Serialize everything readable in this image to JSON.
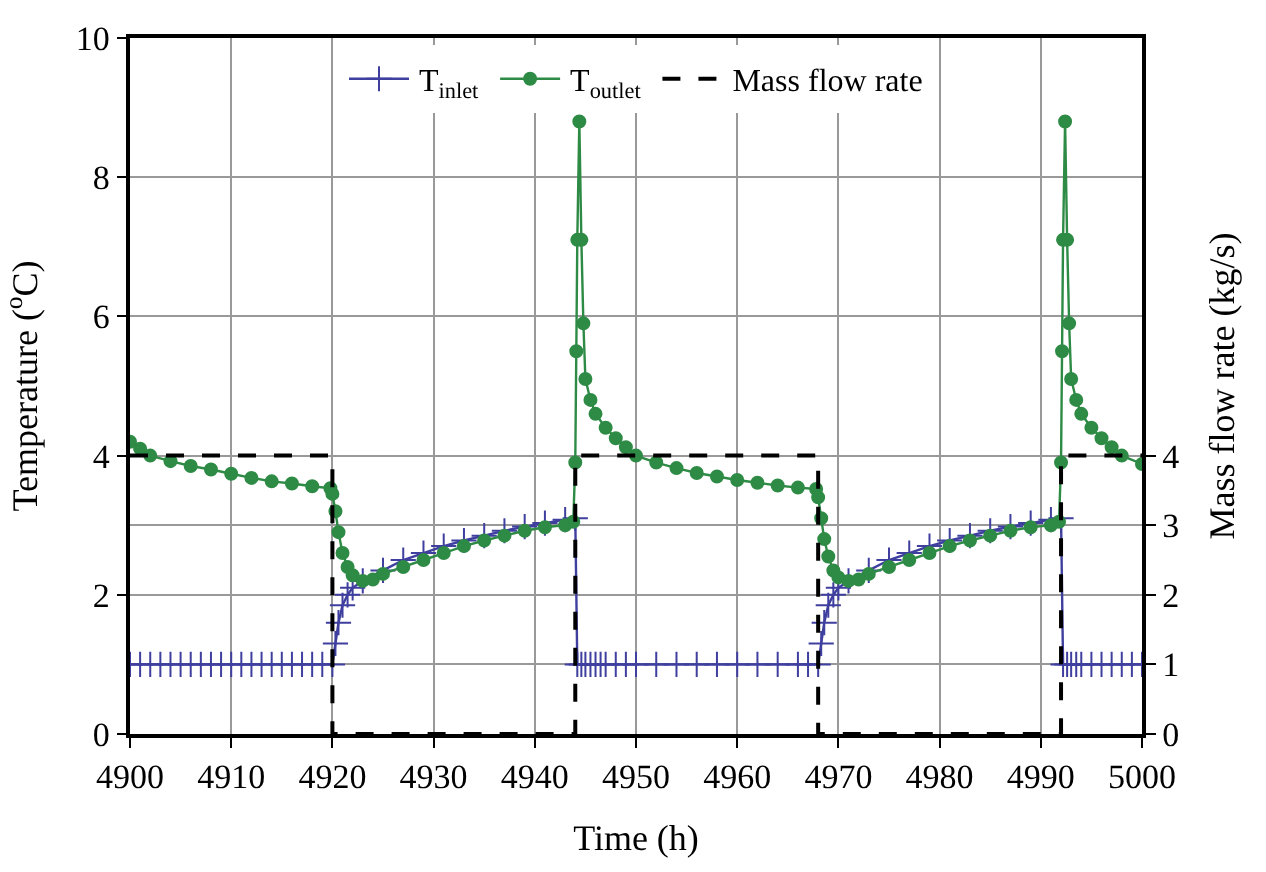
{
  "chart_data": {
    "type": "line",
    "xlabel": "Time (h)",
    "ylabel": "Temperature ($^{o}$C)",
    "y2label": "Mass flow rate (kg/s)",
    "xlim": [
      4900,
      5000
    ],
    "xticks": [
      4900,
      4910,
      4920,
      4930,
      4940,
      4950,
      4960,
      4970,
      4980,
      4990,
      5000
    ],
    "ylim": [
      0,
      10
    ],
    "yticks": [
      0,
      2,
      4,
      6,
      8,
      10
    ],
    "y2lim": [
      0,
      10
    ],
    "y2ticks": [
      0,
      1,
      2,
      3,
      4
    ],
    "grid": true,
    "legend": "top",
    "series": [
      {
        "name": "T$_{inlet}$",
        "color": "#3f3f9f",
        "marker": "cross",
        "x": [
          4900,
          4901,
          4902,
          4903,
          4904,
          4905,
          4906,
          4907,
          4908,
          4909,
          4910,
          4911,
          4912,
          4913,
          4914,
          4915,
          4916,
          4917,
          4918,
          4919,
          4920,
          4920.3,
          4920.6,
          4921,
          4921.5,
          4922,
          4923,
          4925,
          4927,
          4929,
          4931,
          4933,
          4935,
          4937,
          4939,
          4941,
          4943,
          4944,
          4944.2,
          4944.6,
          4945,
          4945.5,
          4946,
          4946.5,
          4947,
          4948,
          4949,
          4950,
          4952,
          4954,
          4956,
          4958,
          4960,
          4962,
          4964,
          4966,
          4967,
          4968,
          4968.3,
          4968.6,
          4969,
          4969.5,
          4970,
          4971,
          4973,
          4975,
          4977,
          4979,
          4981,
          4983,
          4985,
          4987,
          4989,
          4991,
          4992,
          4992.2,
          4992.6,
          4993,
          4993.5,
          4994,
          4995,
          4996,
          4997,
          4998,
          4999,
          5000
        ],
        "values": [
          1,
          1,
          1,
          1,
          1,
          1,
          1,
          1,
          1,
          1,
          1,
          1,
          1,
          1,
          1,
          1,
          1,
          1,
          1,
          1,
          1,
          1.3,
          1.6,
          1.85,
          2.0,
          2.1,
          2.2,
          2.35,
          2.5,
          2.6,
          2.7,
          2.78,
          2.85,
          2.92,
          2.98,
          3.03,
          3.08,
          3.1,
          1,
          1,
          1,
          1,
          1,
          1,
          1,
          1,
          1,
          1,
          1,
          1,
          1,
          1,
          1,
          1,
          1,
          1,
          1,
          1,
          1.3,
          1.6,
          1.85,
          2.0,
          2.1,
          2.2,
          2.35,
          2.5,
          2.6,
          2.7,
          2.78,
          2.85,
          2.92,
          2.98,
          3.03,
          3.08,
          3.1,
          1,
          1,
          1,
          1,
          1,
          1,
          1,
          1,
          1,
          1,
          1
        ]
      },
      {
        "name": "T$_{outlet}$",
        "color": "#2e8b45",
        "marker": "circle",
        "x": [
          4900,
          4901,
          4902,
          4904,
          4906,
          4908,
          4910,
          4912,
          4914,
          4916,
          4918,
          4919.8,
          4920,
          4920.3,
          4920.6,
          4921,
          4921.5,
          4922,
          4923,
          4924,
          4925,
          4927,
          4929,
          4931,
          4933,
          4935,
          4937,
          4939,
          4941,
          4943,
          4943.8,
          4944,
          4944.1,
          4944.2,
          4944.4,
          4944.6,
          4944.8,
          4945,
          4945.5,
          4946,
          4947,
          4948,
          4949,
          4950,
          4952,
          4954,
          4956,
          4958,
          4960,
          4962,
          4964,
          4966,
          4967.8,
          4968,
          4968.3,
          4968.6,
          4969,
          4969.5,
          4970,
          4971,
          4972,
          4973,
          4975,
          4977,
          4979,
          4981,
          4983,
          4985,
          4987,
          4989,
          4991,
          4991.8,
          4992,
          4992.1,
          4992.2,
          4992.4,
          4992.6,
          4992.8,
          4993,
          4993.5,
          4994,
          4995,
          4996,
          4997,
          4998,
          5000
        ],
        "values": [
          4.2,
          4.1,
          4.0,
          3.92,
          3.85,
          3.8,
          3.74,
          3.68,
          3.63,
          3.6,
          3.56,
          3.53,
          3.45,
          3.2,
          2.9,
          2.6,
          2.4,
          2.28,
          2.2,
          2.22,
          2.3,
          2.4,
          2.5,
          2.6,
          2.7,
          2.78,
          2.85,
          2.92,
          2.97,
          3.0,
          3.05,
          3.9,
          5.5,
          7.1,
          8.8,
          7.1,
          5.9,
          5.1,
          4.8,
          4.6,
          4.4,
          4.25,
          4.12,
          4.0,
          3.9,
          3.82,
          3.75,
          3.7,
          3.65,
          3.61,
          3.57,
          3.54,
          3.52,
          3.4,
          3.1,
          2.8,
          2.55,
          2.35,
          2.25,
          2.2,
          2.22,
          2.3,
          2.4,
          2.5,
          2.6,
          2.7,
          2.78,
          2.85,
          2.92,
          2.97,
          3.0,
          3.05,
          3.9,
          5.5,
          7.1,
          8.8,
          7.1,
          5.9,
          5.1,
          4.8,
          4.6,
          4.4,
          4.25,
          4.12,
          4.0,
          3.88
        ]
      },
      {
        "name": "Mass flow rate",
        "color": "#000000",
        "type": "step",
        "axis": "y2",
        "line_style": "dashed",
        "marker": "none",
        "x": [
          4900,
          4920,
          4944,
          4968,
          4992,
          5000
        ],
        "values": [
          4,
          0,
          4,
          0,
          4,
          4
        ]
      }
    ]
  }
}
